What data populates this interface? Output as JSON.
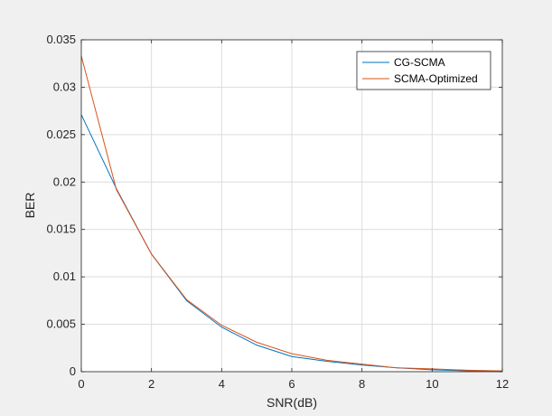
{
  "chart_data": {
    "type": "line",
    "title": "",
    "xlabel": "SNR(dB)",
    "ylabel": "BER",
    "xlim": [
      0,
      12
    ],
    "ylim": [
      0,
      0.035
    ],
    "xticks": [
      0,
      2,
      4,
      6,
      8,
      10,
      12
    ],
    "xtick_labels": [
      "0",
      "2",
      "4",
      "6",
      "8",
      "10",
      "12"
    ],
    "yticks": [
      0,
      0.005,
      0.01,
      0.015,
      0.02,
      0.025,
      0.03,
      0.035
    ],
    "ytick_labels": [
      "0",
      "0.005",
      "0.01",
      "0.015",
      "0.02",
      "0.025",
      "0.03",
      "0.035"
    ],
    "grid": true,
    "legend_position": "top-right",
    "x": [
      0,
      1,
      2,
      3,
      4,
      5,
      6,
      7,
      8,
      9,
      10,
      11,
      12
    ],
    "series": [
      {
        "name": "CG-SCMA",
        "color": "#0072BD",
        "values": [
          0.0271,
          0.0193,
          0.0124,
          0.0075,
          0.0047,
          0.0028,
          0.0016,
          0.0011,
          0.0007,
          0.0004,
          0.0002,
          0.0001,
          5e-05
        ]
      },
      {
        "name": "SCMA-Optimized",
        "color": "#D95319",
        "values": [
          0.0333,
          0.0192,
          0.0124,
          0.0076,
          0.0049,
          0.0031,
          0.0019,
          0.0012,
          0.0008,
          0.0004,
          0.0003,
          0.00015,
          8e-05
        ]
      }
    ]
  }
}
